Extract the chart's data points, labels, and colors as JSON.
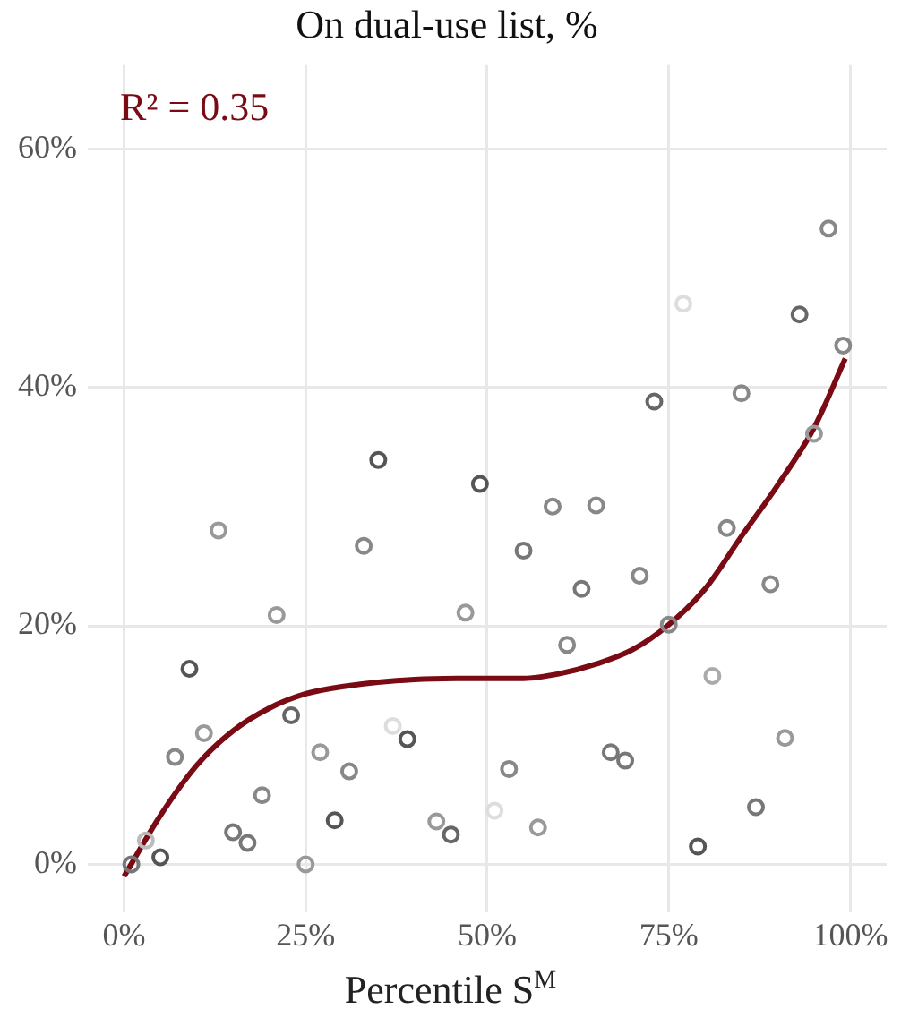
{
  "chart_data": {
    "type": "scatter",
    "title": "On dual-use list, %",
    "xlabel": "Percentile S$^{M}$",
    "annotations": [
      "R² = 0.35"
    ],
    "xlim": [
      -5,
      105
    ],
    "ylim": [
      -4,
      67
    ],
    "xticks": [
      {
        "value": 0,
        "label": "0%"
      },
      {
        "value": 25,
        "label": "25%"
      },
      {
        "value": 50,
        "label": "50%"
      },
      {
        "value": 75,
        "label": "75%"
      },
      {
        "value": 100,
        "label": "100%"
      }
    ],
    "yticks": [
      {
        "value": 0,
        "label": "0%"
      },
      {
        "value": 20,
        "label": "20%"
      },
      {
        "value": 40,
        "label": "40%"
      },
      {
        "value": 60,
        "label": "60%"
      }
    ],
    "grid": true,
    "legend": false,
    "marker": "circle",
    "series": [
      {
        "x": [
          1,
          3,
          5,
          7,
          9,
          11,
          13,
          15,
          17,
          19,
          21,
          23,
          25,
          27,
          29,
          31,
          33,
          35,
          37,
          39,
          43,
          45,
          47,
          49,
          51,
          53,
          55,
          57,
          59,
          61,
          63,
          65,
          67,
          69,
          71,
          73,
          75,
          77,
          79,
          81,
          83,
          85,
          87,
          89,
          91,
          93,
          95,
          97,
          99
        ],
        "values": [
          0,
          2.0,
          0.6,
          9.0,
          16.4,
          11.0,
          28.0,
          2.7,
          1.8,
          5.8,
          20.9,
          12.5,
          0,
          9.4,
          3.7,
          7.8,
          26.7,
          33.9,
          11.6,
          10.5,
          3.6,
          2.5,
          21.1,
          31.9,
          4.5,
          8.0,
          26.3,
          3.1,
          30.0,
          18.4,
          23.1,
          30.1,
          9.4,
          8.7,
          24.2,
          38.8,
          20.1,
          47.0,
          1.5,
          15.8,
          28.2,
          39.5,
          4.8,
          23.5,
          10.6,
          46.1,
          36.1,
          53.3,
          43.5
        ],
        "colors": [
          "#777777",
          "#bbbbbb",
          "#555555",
          "#888888",
          "#555555",
          "#999999",
          "#999999",
          "#777777",
          "#777777",
          "#888888",
          "#999999",
          "#666666",
          "#999999",
          "#999999",
          "#555555",
          "#888888",
          "#888888",
          "#555555",
          "#dddddd",
          "#555555",
          "#999999",
          "#666666",
          "#999999",
          "#555555",
          "#dddddd",
          "#888888",
          "#777777",
          "#999999",
          "#888888",
          "#888888",
          "#777777",
          "#888888",
          "#777777",
          "#777777",
          "#888888",
          "#666666",
          "#888888",
          "#dddddd",
          "#555555",
          "#aaaaaa",
          "#888888",
          "#888888",
          "#777777",
          "#888888",
          "#999999",
          "#666666",
          "#999999",
          "#888888",
          "#888888"
        ]
      },
      {
        "type": "line",
        "color": "#7a0a14",
        "line_style": "solid",
        "marker": "none",
        "x": [
          0,
          5,
          10,
          15,
          20,
          25,
          30,
          40,
          50,
          55,
          60,
          65,
          70,
          75,
          80,
          85,
          90,
          95,
          99.3
        ],
        "values": [
          -1.0,
          4.1,
          8.3,
          11.2,
          13.1,
          14.3,
          14.9,
          15.5,
          15.6,
          15.6,
          16.0,
          16.8,
          18.0,
          20.1,
          23.1,
          27.5,
          31.8,
          36.6,
          42.4
        ]
      }
    ]
  }
}
